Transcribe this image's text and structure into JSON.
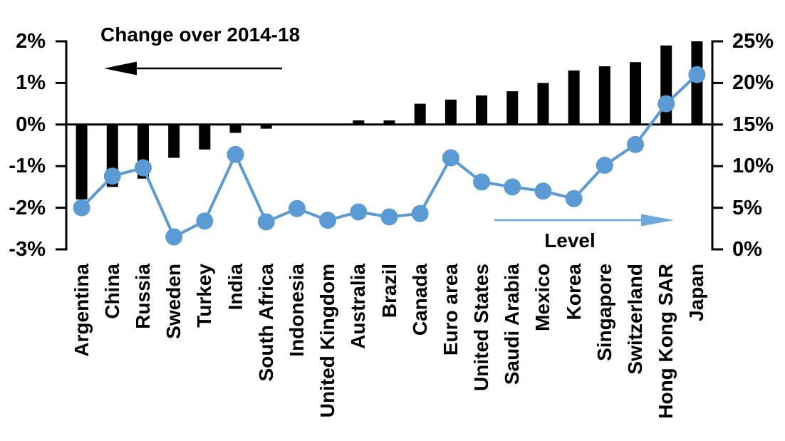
{
  "title": "Change over 2014-18",
  "level_label": "Level",
  "colors": {
    "bar": "#000000",
    "line": "#5b9bd5",
    "arrow_black": "#000000",
    "arrow_blue": "#6fa8dc",
    "axis": "#000000",
    "text": "#000000",
    "background": "#ffffff"
  },
  "left_axis": {
    "tick_labels": [
      "2%",
      "1%",
      "0%",
      "-1%",
      "-2%",
      "-3%"
    ],
    "tick_values": [
      2,
      1,
      0,
      -1,
      -2,
      -3
    ]
  },
  "right_axis": {
    "tick_labels": [
      "25%",
      "20%",
      "15%",
      "10%",
      "5%",
      "0%"
    ],
    "tick_values": [
      25,
      20,
      15,
      10,
      5,
      0
    ]
  },
  "chart_data": {
    "type": "bar",
    "subtype": "bar-line-combo",
    "title": "Change over 2014-18",
    "categories": [
      "Argentina",
      "China",
      "Russia",
      "Sweden",
      "Turkey",
      "India",
      "South Africa",
      "Indonesia",
      "United Kingdom",
      "Australia",
      "Brazil",
      "Canada",
      "Euro area",
      "United States",
      "Saudi Arabia",
      "Mexico",
      "Korea",
      "Singapore",
      "Switzerland",
      "Hong Kong SAR",
      "Japan"
    ],
    "series": [
      {
        "name": "Change over 2014-18",
        "type": "bar",
        "axis": "left",
        "values": [
          -1.8,
          -1.5,
          -1.3,
          -0.8,
          -0.6,
          -0.2,
          -0.1,
          0.0,
          0.0,
          0.1,
          0.1,
          0.5,
          0.6,
          0.7,
          0.8,
          1.0,
          1.3,
          1.4,
          1.5,
          1.9,
          2.0
        ]
      },
      {
        "name": "Level",
        "type": "line",
        "axis": "right",
        "values": [
          5.0,
          8.8,
          9.8,
          1.5,
          3.4,
          11.4,
          3.3,
          4.9,
          3.5,
          4.5,
          3.9,
          4.3,
          11.0,
          8.1,
          7.5,
          7.0,
          6.1,
          10.1,
          12.6,
          17.5,
          21.0
        ]
      }
    ],
    "left_ylim": [
      -3,
      2
    ],
    "right_ylim": [
      0,
      25
    ],
    "grid": false,
    "legend_position": "annotations-with-arrows",
    "annotations": [
      {
        "text": "Change over 2014-18",
        "arrow": "left",
        "refers_to": "left-axis bars"
      },
      {
        "text": "Level",
        "arrow": "right",
        "refers_to": "right-axis line"
      }
    ]
  }
}
